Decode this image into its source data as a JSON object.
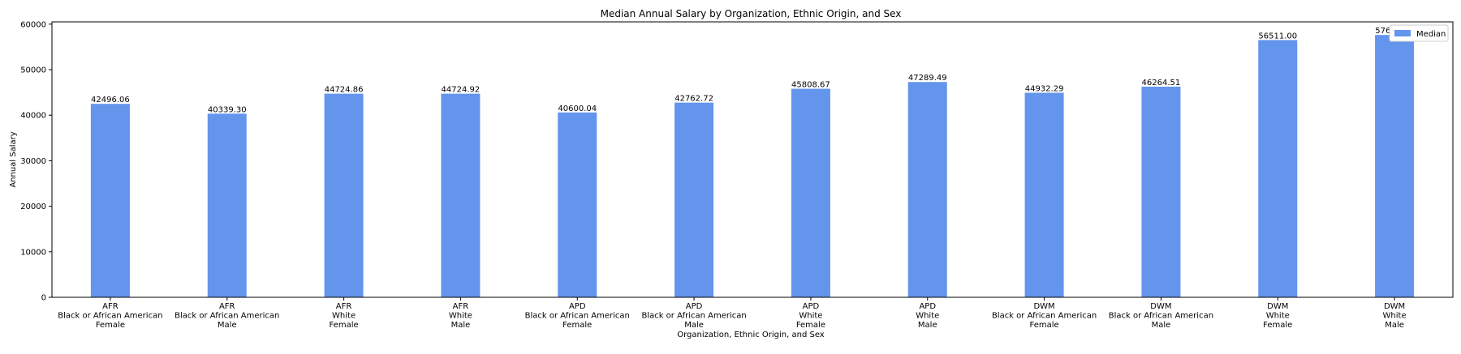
{
  "chart_data": {
    "type": "bar",
    "title": "Median Annual Salary by Organization, Ethnic Origin, and Sex",
    "xlabel": "Organization, Ethnic Origin, and Sex",
    "ylabel": "Annual Salary",
    "ylim": [
      0,
      60500
    ],
    "yticks": [
      0,
      10000,
      20000,
      30000,
      40000,
      50000,
      60000
    ],
    "grid": false,
    "legend": {
      "position": "top-right",
      "entries": [
        "Median"
      ]
    },
    "bar_color": "#6495ED",
    "categories": [
      [
        "AFR",
        "Black or African American",
        "Female"
      ],
      [
        "AFR",
        "Black or African American",
        "Male"
      ],
      [
        "AFR",
        "White",
        "Female"
      ],
      [
        "AFR",
        "White",
        "Male"
      ],
      [
        "APD",
        "Black or African American",
        "Female"
      ],
      [
        "APD",
        "Black or African American",
        "Male"
      ],
      [
        "APD",
        "White",
        "Female"
      ],
      [
        "APD",
        "White",
        "Male"
      ],
      [
        "DWM",
        "Black or African American",
        "Female"
      ],
      [
        "DWM",
        "Black or African American",
        "Male"
      ],
      [
        "DWM",
        "White",
        "Female"
      ],
      [
        "DWM",
        "White",
        "Male"
      ]
    ],
    "series": [
      {
        "name": "Median",
        "values": [
          42496.06,
          40339.3,
          44724.86,
          44724.92,
          40600.04,
          42762.72,
          45808.67,
          47289.49,
          44932.29,
          46264.51,
          56511.0,
          57625.65
        ],
        "labels": [
          "42496.06",
          "40339.30",
          "44724.86",
          "44724.92",
          "40600.04",
          "42762.72",
          "45808.67",
          "47289.49",
          "44932.29",
          "46264.51",
          "56511.00",
          "57625.65"
        ]
      }
    ]
  }
}
